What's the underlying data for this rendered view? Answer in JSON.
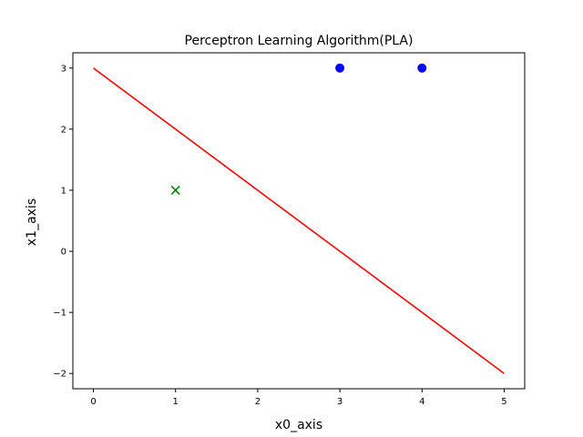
{
  "chart_data": {
    "type": "scatter",
    "title": "Perceptron Learning Algorithm(PLA)",
    "xlabel": "x0_axis",
    "ylabel": "x1_axis",
    "xlim": [
      -0.25,
      5.25
    ],
    "ylim": [
      -2.25,
      3.25
    ],
    "xticks": [
      0,
      1,
      2,
      3,
      4,
      5
    ],
    "xtick_labels": [
      "0",
      "1",
      "2",
      "3",
      "4",
      "5"
    ],
    "yticks": [
      -2,
      -1,
      0,
      1,
      2,
      3
    ],
    "ytick_labels": [
      "−2",
      "−1",
      "0",
      "1",
      "2",
      "3"
    ],
    "grid": false,
    "legend": "none",
    "series": [
      {
        "marker": "circle",
        "color": "#0000ff",
        "points": [
          [
            3,
            3
          ],
          [
            4,
            3
          ]
        ]
      },
      {
        "marker": "x",
        "color": "#008000",
        "points": [
          [
            1,
            1
          ]
        ]
      },
      {
        "kind": "line",
        "color": "#ff0000",
        "points": [
          [
            0,
            3
          ],
          [
            5,
            -2
          ]
        ]
      }
    ]
  }
}
